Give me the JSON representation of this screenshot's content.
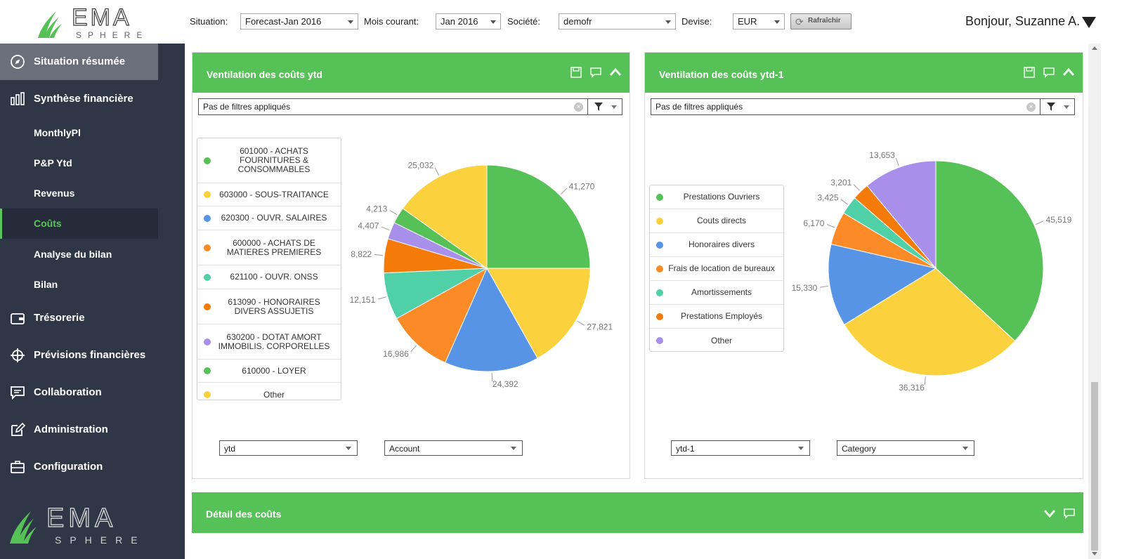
{
  "brand": {
    "name": "EMA",
    "sub": "SPHERE"
  },
  "toolbar": {
    "situation_label": "Situation:",
    "situation_value": "Forecast-Jan 2016",
    "mois_label": "Mois courant:",
    "mois_value": "Jan 2016",
    "societe_label": "Société:",
    "societe_value": "demofr",
    "devise_label": "Devise:",
    "devise_value": "EUR",
    "refresh_label": "Rafraîchir",
    "greeting": "Bonjour, Suzanne A."
  },
  "sidebar": {
    "items": [
      {
        "label": "Situation résumée",
        "icon": "compass-icon"
      },
      {
        "label": "Synthèse financière",
        "icon": "bar-chart-icon"
      },
      {
        "label": "MonthlyPl"
      },
      {
        "label": "P&P Ytd"
      },
      {
        "label": "Revenus"
      },
      {
        "label": "Coûts"
      },
      {
        "label": "Analyse du bilan"
      },
      {
        "label": "Bilan"
      },
      {
        "label": "Trésorerie",
        "icon": "wallet-icon"
      },
      {
        "label": "Prévisions financières",
        "icon": "crosshair-icon"
      },
      {
        "label": "Collaboration",
        "icon": "chat-icon"
      },
      {
        "label": "Administration",
        "icon": "edit-icon"
      },
      {
        "label": "Configuration",
        "icon": "briefcase-icon"
      }
    ],
    "active": "Coûts"
  },
  "panel_left": {
    "title": "Ventilation des coûts ytd",
    "filter_text": "Pas de filtres appliqués",
    "select_period": "ytd",
    "select_dimension": "Account"
  },
  "panel_right": {
    "title": "Ventilation des coûts ytd-1",
    "filter_text": "Pas de filtres appliqués",
    "select_period": "ytd-1",
    "select_dimension": "Category"
  },
  "panel_detail": {
    "title": "Détail des coûts"
  },
  "colors": {
    "green": "#56c156",
    "yellow": "#fcd13e",
    "blue": "#5794e6",
    "orange": "#fb8a27",
    "teal": "#4fd0a6",
    "orange2": "#f47a0a",
    "purple": "#a890ea"
  },
  "chart_data": [
    {
      "type": "pie",
      "title": "Ventilation des coûts ytd",
      "labels": [
        "601000 - ACHATS FOURNITURES & CONSOMMABLES",
        "Other",
        "620300 - OUVR. SALAIRES",
        "600000 - ACHATS DE MATIERES PREMIERES",
        "621100 - OUVR. ONSS",
        "613090 - HONORAIRES DIVERS ASSUJETIS",
        "630200 - DOTAT AMORT IMMOBILIS. CORPORELLES",
        "610000 - LOYER",
        "603000 - SOUS-TRAITANCE"
      ],
      "slices": [
        {
          "value": 41270,
          "color": "#56c156",
          "label": "41,270"
        },
        {
          "value": 27821,
          "color": "#fcd13e",
          "label": "27,821"
        },
        {
          "value": 24392,
          "color": "#5794e6",
          "label": "24,392"
        },
        {
          "value": 16986,
          "color": "#fb8a27",
          "label": "16,986"
        },
        {
          "value": 12151,
          "color": "#4fd0a6",
          "label": "12,151"
        },
        {
          "value": 8822,
          "color": "#f47a0a",
          "label": "8,822"
        },
        {
          "value": 4407,
          "color": "#a890ea",
          "label": "4,407"
        },
        {
          "value": 4213,
          "color": "#56c156",
          "label": "4,213"
        },
        {
          "value": 25032,
          "color": "#fcd13e",
          "label": "25,032"
        }
      ],
      "legend": [
        {
          "label": "601000 - ACHATS FOURNITURES & CONSOMMABLES",
          "color": "#56c156"
        },
        {
          "label": "603000 - SOUS-TRAITANCE",
          "color": "#fcd13e"
        },
        {
          "label": "620300 - OUVR. SALAIRES",
          "color": "#5794e6"
        },
        {
          "label": "600000 - ACHATS DE MATIERES PREMIERES",
          "color": "#fb8a27"
        },
        {
          "label": "621100 - OUVR. ONSS",
          "color": "#4fd0a6"
        },
        {
          "label": "613090 - HONORAIRES DIVERS ASSUJETIS",
          "color": "#f47a0a"
        },
        {
          "label": "630200 - DOTAT AMORT IMMOBILIS. CORPORELLES",
          "color": "#a890ea"
        },
        {
          "label": "610000 - LOYER",
          "color": "#56c156"
        },
        {
          "label": "Other",
          "color": "#fcd13e"
        }
      ]
    },
    {
      "type": "pie",
      "title": "Ventilation des coûts ytd-1",
      "slices": [
        {
          "value": 45519,
          "color": "#56c156",
          "label": "45,519"
        },
        {
          "value": 36316,
          "color": "#fcd13e",
          "label": "36,316"
        },
        {
          "value": 15330,
          "color": "#5794e6",
          "label": "15,330"
        },
        {
          "value": 6170,
          "color": "#fb8a27",
          "label": "6,170"
        },
        {
          "value": 3425,
          "color": "#4fd0a6",
          "label": "3,425"
        },
        {
          "value": 3201,
          "color": "#f47a0a",
          "label": "3,201"
        },
        {
          "value": 13653,
          "color": "#a890ea",
          "label": "13,653"
        }
      ],
      "legend": [
        {
          "label": "Prestations Ouvriers",
          "color": "#56c156"
        },
        {
          "label": "Couts directs",
          "color": "#fcd13e"
        },
        {
          "label": "Honoraires divers",
          "color": "#5794e6"
        },
        {
          "label": "Frais de location de bureaux",
          "color": "#fb8a27"
        },
        {
          "label": "Amortissements",
          "color": "#4fd0a6"
        },
        {
          "label": "Prestations Employés",
          "color": "#f47a0a"
        },
        {
          "label": "Other",
          "color": "#a890ea"
        }
      ]
    }
  ]
}
